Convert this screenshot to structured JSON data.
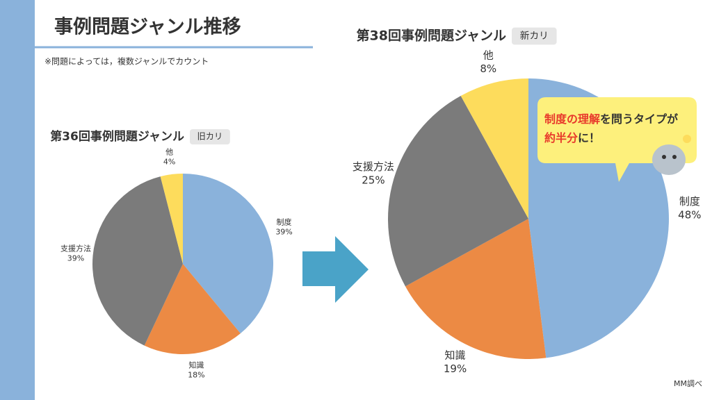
{
  "title": "事例問題ジャンル推移",
  "note": "※問題によっては，複数ジャンルでカウント",
  "chart_data": [
    {
      "type": "pie",
      "title": "第36回事例問題ジャンル",
      "badge": "旧カリ",
      "categories": [
        "制度",
        "知識",
        "支援方法",
        "他"
      ],
      "values": [
        39,
        18,
        39,
        4
      ],
      "value_labels": [
        "39%",
        "18%",
        "39%",
        "4%"
      ],
      "colors": [
        "#8ab2db",
        "#ec8a44",
        "#7b7b7b",
        "#fddc5c"
      ]
    },
    {
      "type": "pie",
      "title": "第38回事例問題ジャンル",
      "badge": "新カリ",
      "categories": [
        "制度",
        "知識",
        "支援方法",
        "他"
      ],
      "values": [
        48,
        19,
        25,
        8
      ],
      "value_labels": [
        "48%",
        "19%",
        "25%",
        "8%"
      ],
      "colors": [
        "#8ab2db",
        "#ec8a44",
        "#7b7b7b",
        "#fddc5c"
      ]
    }
  ],
  "callout": [
    [
      {
        "text": "制度の理解",
        "color": "#e8392b"
      },
      {
        "text": "を問うタイプが",
        "color": "#333333"
      }
    ],
    [
      {
        "text": "約半分",
        "color": "#e8392b"
      },
      {
        "text": "に！",
        "color": "#333333"
      }
    ]
  ],
  "source": "MM調べ"
}
